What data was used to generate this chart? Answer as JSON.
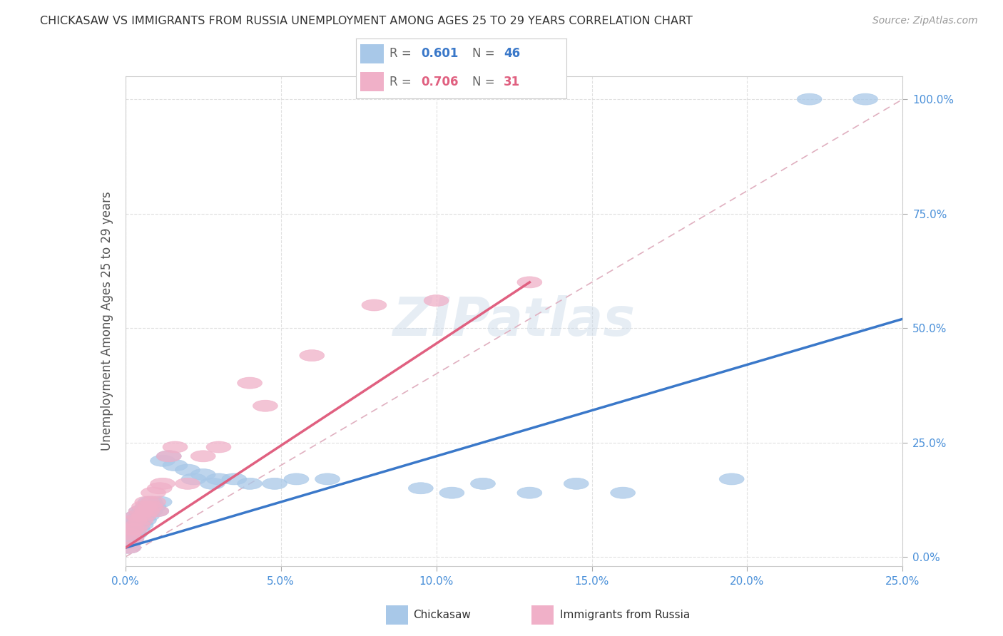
{
  "title": "CHICKASAW VS IMMIGRANTS FROM RUSSIA UNEMPLOYMENT AMONG AGES 25 TO 29 YEARS CORRELATION CHART",
  "source": "Source: ZipAtlas.com",
  "ylabel": "Unemployment Among Ages 25 to 29 years",
  "xlim": [
    0,
    0.25
  ],
  "ylim": [
    -0.02,
    1.05
  ],
  "xticks": [
    0.0,
    0.05,
    0.1,
    0.15,
    0.2,
    0.25
  ],
  "yticks": [
    0.0,
    0.25,
    0.5,
    0.75,
    1.0
  ],
  "chickasaw_R": 0.601,
  "chickasaw_N": 46,
  "russia_R": 0.706,
  "russia_N": 31,
  "chickasaw_color": "#a8c8e8",
  "russia_color": "#f0b0c8",
  "chickasaw_line_color": "#3a78c9",
  "russia_line_color": "#e06080",
  "ref_line_color": "#e0b0c0",
  "watermark": "ZIPatlas",
  "background_color": "#ffffff",
  "chickasaw_x": [
    0.001,
    0.001,
    0.001,
    0.002,
    0.002,
    0.002,
    0.003,
    0.003,
    0.003,
    0.004,
    0.004,
    0.004,
    0.005,
    0.005,
    0.005,
    0.006,
    0.006,
    0.007,
    0.007,
    0.008,
    0.008,
    0.009,
    0.01,
    0.011,
    0.012,
    0.014,
    0.016,
    0.02,
    0.022,
    0.025,
    0.028,
    0.03,
    0.035,
    0.04,
    0.048,
    0.055,
    0.065,
    0.095,
    0.105,
    0.115,
    0.13,
    0.145,
    0.16,
    0.195,
    0.22,
    0.238
  ],
  "chickasaw_y": [
    0.02,
    0.03,
    0.05,
    0.04,
    0.06,
    0.07,
    0.05,
    0.07,
    0.08,
    0.06,
    0.08,
    0.09,
    0.07,
    0.09,
    0.1,
    0.08,
    0.1,
    0.09,
    0.11,
    0.1,
    0.12,
    0.11,
    0.1,
    0.12,
    0.21,
    0.22,
    0.2,
    0.19,
    0.17,
    0.18,
    0.16,
    0.17,
    0.17,
    0.16,
    0.16,
    0.17,
    0.17,
    0.15,
    0.14,
    0.16,
    0.14,
    0.16,
    0.14,
    0.17,
    1.0,
    1.0
  ],
  "russia_x": [
    0.001,
    0.001,
    0.002,
    0.002,
    0.003,
    0.003,
    0.004,
    0.004,
    0.005,
    0.005,
    0.006,
    0.006,
    0.007,
    0.007,
    0.008,
    0.009,
    0.009,
    0.01,
    0.011,
    0.012,
    0.014,
    0.016,
    0.02,
    0.025,
    0.03,
    0.04,
    0.045,
    0.06,
    0.08,
    0.1,
    0.13
  ],
  "russia_y": [
    0.02,
    0.05,
    0.04,
    0.06,
    0.06,
    0.08,
    0.07,
    0.09,
    0.08,
    0.1,
    0.09,
    0.11,
    0.1,
    0.12,
    0.11,
    0.12,
    0.14,
    0.1,
    0.15,
    0.16,
    0.22,
    0.24,
    0.16,
    0.22,
    0.24,
    0.38,
    0.33,
    0.44,
    0.55,
    0.56,
    0.6
  ],
  "chickasaw_line": [
    0.0,
    0.25,
    0.02,
    0.52
  ],
  "russia_line": [
    0.0,
    0.13,
    0.02,
    0.6
  ]
}
